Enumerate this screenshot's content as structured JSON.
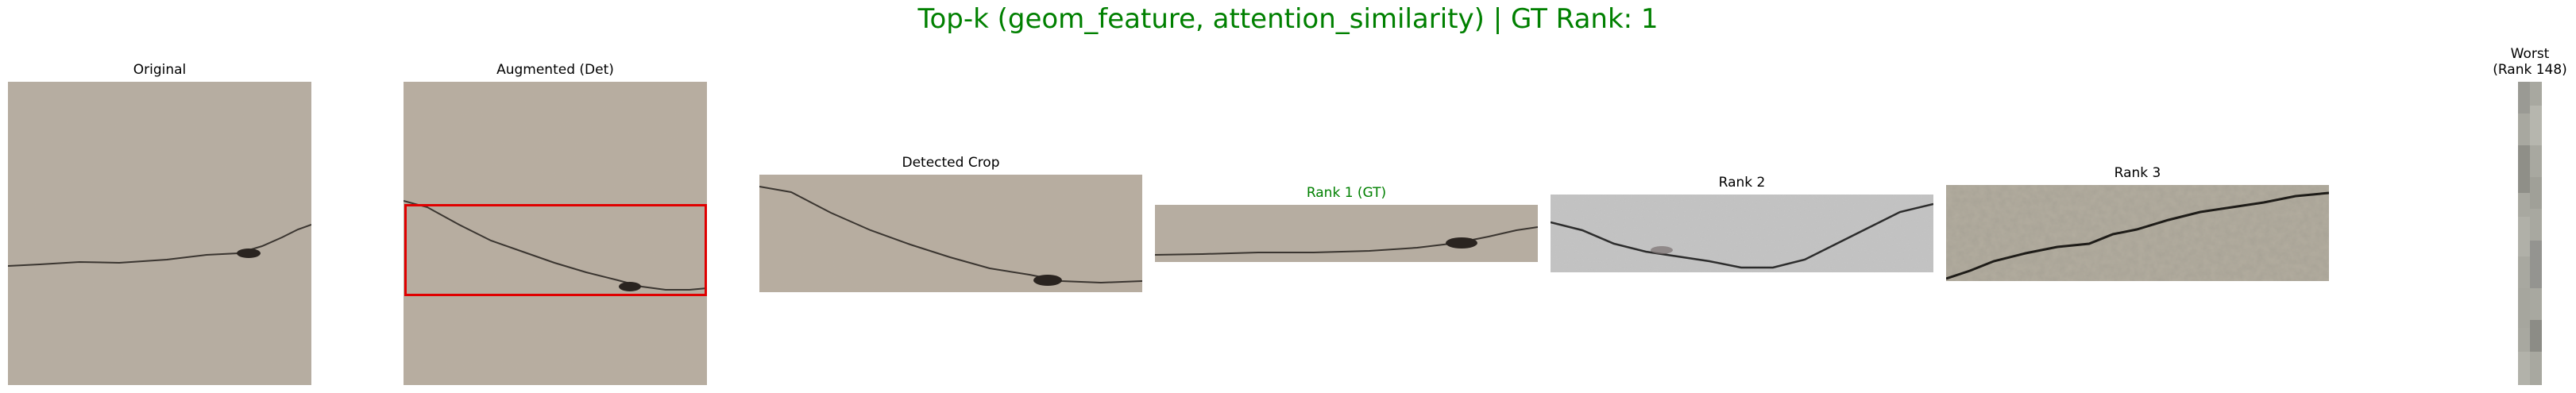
{
  "figure": {
    "title": "Top-k (geom_feature, attention_similarity) | GT Rank: 1",
    "title_color": "#008000"
  },
  "panels": [
    {
      "id": "original",
      "label": "Original"
    },
    {
      "id": "augmented",
      "label": "Augmented (Det)"
    },
    {
      "id": "detected",
      "label": "Detected Crop"
    },
    {
      "id": "rank1",
      "label": "Rank 1 (GT)",
      "label_color": "#008000"
    },
    {
      "id": "rank2",
      "label": "Rank 2"
    },
    {
      "id": "rank3",
      "label": "Rank 3"
    },
    {
      "id": "worst",
      "label_line1": "Worst",
      "label_line2": "(Rank 148)"
    }
  ],
  "colors": {
    "detection_box": "#e00000",
    "concrete": "#b8ada0",
    "gray_concrete": "#c2c2c2",
    "rough_concrete": "#b2ac9e"
  }
}
